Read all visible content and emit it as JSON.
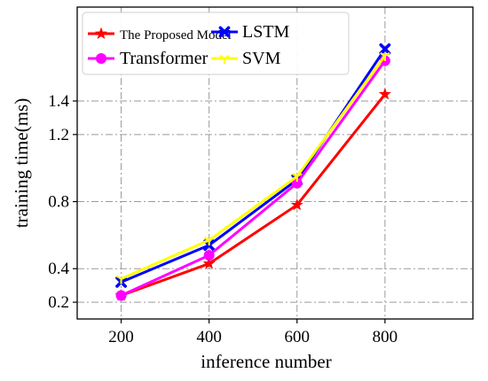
{
  "chart_data": {
    "type": "line",
    "xlabel": "inference number",
    "ylabel": "training time(ms)",
    "x": [
      200,
      400,
      600,
      800
    ],
    "xticks": [
      200,
      400,
      600,
      800
    ],
    "xlim": [
      100,
      1000
    ],
    "yticks": [
      0.2,
      0.4,
      0.8,
      1.2,
      1.4
    ],
    "ylim": [
      0.1,
      1.96
    ],
    "grid": true,
    "legend_position": "top-left",
    "series": [
      {
        "name": "The Proposed Model",
        "color": "#ff0000",
        "marker": "star",
        "values": [
          0.24,
          0.43,
          0.78,
          1.44
        ]
      },
      {
        "name": "LSTM",
        "color": "#0000ff",
        "marker": "x",
        "values": [
          0.32,
          0.54,
          0.93,
          1.71
        ]
      },
      {
        "name": "Transformer",
        "color": "#ff00ff",
        "marker": "circle",
        "values": [
          0.24,
          0.48,
          0.91,
          1.64
        ]
      },
      {
        "name": "SVM",
        "color": "#ffff00",
        "marker": "tri-down",
        "values": [
          0.34,
          0.57,
          0.95,
          1.67
        ]
      }
    ]
  }
}
